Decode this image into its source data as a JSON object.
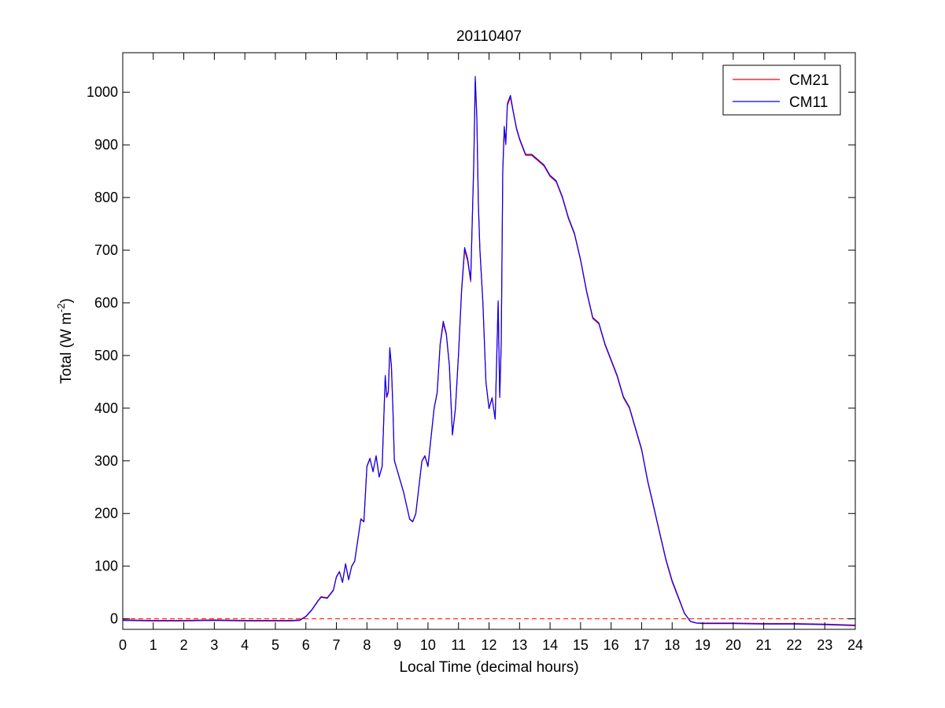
{
  "chart_data": {
    "type": "line",
    "title": "20110407",
    "xlabel": "Local Time (decimal hours)",
    "ylabel": {
      "prefix": "Total (W m",
      "superscript": "-2",
      "suffix": ")"
    },
    "xlim": [
      0,
      24
    ],
    "ylim": [
      -20,
      1075
    ],
    "xticks": [
      0,
      1,
      2,
      3,
      4,
      5,
      6,
      7,
      8,
      9,
      10,
      11,
      12,
      13,
      14,
      15,
      16,
      17,
      18,
      19,
      20,
      21,
      22,
      23,
      24
    ],
    "yticks": [
      0,
      100,
      200,
      300,
      400,
      500,
      600,
      700,
      800,
      900,
      1000
    ],
    "grid": false,
    "legend_position": "top-right",
    "zero_line": {
      "y": 0,
      "style": "dashed",
      "color": "#ff0000"
    },
    "series": [
      {
        "name": "CM21",
        "color": "#ff0000",
        "x": [
          0,
          1,
          2,
          3,
          4,
          5,
          5.5,
          5.8,
          6.0,
          6.2,
          6.4,
          6.5,
          6.7,
          6.9,
          7.0,
          7.1,
          7.2,
          7.3,
          7.4,
          7.5,
          7.6,
          7.7,
          7.8,
          7.9,
          8.0,
          8.1,
          8.2,
          8.3,
          8.4,
          8.5,
          8.6,
          8.65,
          8.7,
          8.75,
          8.8,
          8.85,
          8.9,
          9.0,
          9.2,
          9.4,
          9.5,
          9.6,
          9.7,
          9.8,
          9.9,
          10.0,
          10.2,
          10.3,
          10.4,
          10.5,
          10.6,
          10.7,
          10.8,
          10.9,
          11.0,
          11.1,
          11.2,
          11.3,
          11.4,
          11.5,
          11.55,
          11.6,
          11.65,
          11.7,
          11.8,
          11.9,
          12.0,
          12.1,
          12.2,
          12.3,
          12.35,
          12.4,
          12.45,
          12.5,
          12.55,
          12.6,
          12.7,
          12.8,
          12.9,
          13.0,
          13.2,
          13.4,
          13.6,
          13.8,
          14.0,
          14.2,
          14.4,
          14.6,
          14.8,
          15.0,
          15.2,
          15.4,
          15.6,
          15.8,
          16.0,
          16.2,
          16.4,
          16.6,
          16.8,
          17.0,
          17.2,
          17.4,
          17.6,
          17.8,
          18.0,
          18.2,
          18.4,
          18.6,
          18.8,
          19.0,
          20,
          21,
          22,
          23,
          24
        ],
        "values": [
          -2,
          -3,
          -3,
          -2,
          -3,
          -3,
          -3,
          -2,
          5,
          18,
          35,
          42,
          40,
          55,
          80,
          90,
          70,
          105,
          75,
          100,
          110,
          150,
          190,
          185,
          290,
          305,
          280,
          310,
          270,
          290,
          460,
          420,
          430,
          510,
          480,
          400,
          300,
          280,
          240,
          190,
          185,
          200,
          250,
          300,
          310,
          290,
          400,
          430,
          520,
          560,
          540,
          480,
          350,
          400,
          500,
          620,
          700,
          680,
          640,
          860,
          1020,
          950,
          790,
          700,
          600,
          450,
          400,
          420,
          380,
          600,
          420,
          520,
          850,
          930,
          900,
          975,
          990,
          960,
          930,
          910,
          880,
          880,
          870,
          860,
          840,
          830,
          800,
          760,
          730,
          680,
          620,
          570,
          560,
          520,
          490,
          460,
          420,
          400,
          360,
          320,
          260,
          210,
          160,
          110,
          70,
          40,
          10,
          -5,
          -8,
          -8,
          -8,
          -9,
          -9,
          -10,
          -12
        ]
      },
      {
        "name": "CM11",
        "color": "#0000ff",
        "x": [
          0,
          1,
          2,
          3,
          4,
          5,
          5.5,
          5.8,
          6.0,
          6.2,
          6.4,
          6.5,
          6.7,
          6.9,
          7.0,
          7.1,
          7.2,
          7.3,
          7.4,
          7.5,
          7.6,
          7.7,
          7.8,
          7.9,
          8.0,
          8.1,
          8.2,
          8.3,
          8.4,
          8.5,
          8.6,
          8.65,
          8.7,
          8.75,
          8.8,
          8.85,
          8.9,
          9.0,
          9.2,
          9.4,
          9.5,
          9.6,
          9.7,
          9.8,
          9.9,
          10.0,
          10.2,
          10.3,
          10.4,
          10.5,
          10.6,
          10.7,
          10.8,
          10.9,
          11.0,
          11.1,
          11.2,
          11.3,
          11.4,
          11.5,
          11.55,
          11.6,
          11.65,
          11.7,
          11.8,
          11.9,
          12.0,
          12.1,
          12.2,
          12.3,
          12.35,
          12.4,
          12.45,
          12.5,
          12.55,
          12.6,
          12.7,
          12.8,
          12.9,
          13.0,
          13.2,
          13.4,
          13.6,
          13.8,
          14.0,
          14.2,
          14.4,
          14.6,
          14.8,
          15.0,
          15.2,
          15.4,
          15.6,
          15.8,
          16.0,
          16.2,
          16.4,
          16.6,
          16.8,
          17.0,
          17.2,
          17.4,
          17.6,
          17.8,
          18.0,
          18.2,
          18.4,
          18.6,
          18.8,
          19.0,
          20,
          21,
          22,
          23,
          24
        ],
        "values": [
          -3,
          -4,
          -4,
          -3,
          -4,
          -4,
          -4,
          -3,
          4,
          17,
          34,
          41,
          39,
          54,
          79,
          89,
          69,
          104,
          74,
          99,
          109,
          149,
          189,
          184,
          289,
          304,
          279,
          309,
          269,
          289,
          462,
          422,
          432,
          515,
          482,
          402,
          301,
          281,
          241,
          189,
          184,
          199,
          249,
          299,
          309,
          289,
          399,
          429,
          522,
          565,
          542,
          482,
          349,
          399,
          502,
          624,
          705,
          684,
          644,
          866,
          1030,
          955,
          792,
          702,
          601,
          449,
          399,
          419,
          379,
          604,
          421,
          522,
          855,
          935,
          902,
          978,
          994,
          962,
          932,
          912,
          882,
          882,
          872,
          862,
          842,
          832,
          802,
          762,
          732,
          682,
          622,
          572,
          562,
          522,
          492,
          462,
          422,
          402,
          362,
          322,
          262,
          212,
          162,
          112,
          72,
          42,
          11,
          -5,
          -8,
          -9,
          -9,
          -10,
          -10,
          -11,
          -13
        ]
      }
    ]
  }
}
